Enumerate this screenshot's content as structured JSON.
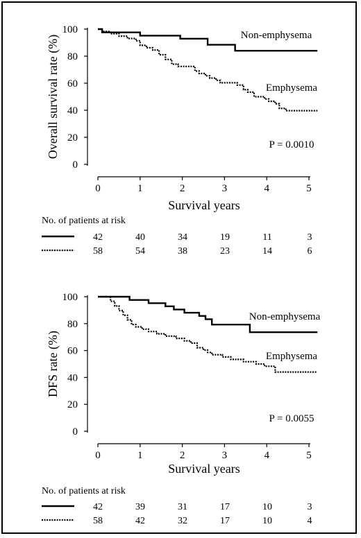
{
  "chart_data": [
    {
      "type": "line",
      "subtype": "kaplan-meier",
      "title": "",
      "xlabel": "Survival years",
      "ylabel": "Overall survival rate (%)",
      "xlim": [
        0,
        5.2
      ],
      "ylim": [
        0,
        100
      ],
      "x_ticks": [
        "0",
        "1",
        "2",
        "3",
        "4",
        "5"
      ],
      "y_ticks": [
        "0",
        "20",
        "40",
        "60",
        "80",
        "100"
      ],
      "pvalue_text": "P = 0.0010",
      "grid": false,
      "series": [
        {
          "name": "Non-emphysema",
          "style": "solid",
          "points": [
            [
              0,
              100
            ],
            [
              0.1,
              97.6
            ],
            [
              1.0,
              95.2
            ],
            [
              1.95,
              92.9
            ],
            [
              2.6,
              88.4
            ],
            [
              3.25,
              84.0
            ],
            [
              5.2,
              84.0
            ]
          ]
        },
        {
          "name": "Emphysema",
          "style": "dotted",
          "points": [
            [
              0,
              100
            ],
            [
              0.1,
              98.3
            ],
            [
              0.3,
              96.6
            ],
            [
              0.5,
              94.8
            ],
            [
              0.7,
              93.1
            ],
            [
              0.9,
              91.4
            ],
            [
              1.0,
              88.0
            ],
            [
              1.15,
              86.2
            ],
            [
              1.3,
              84.5
            ],
            [
              1.45,
              81.0
            ],
            [
              1.6,
              77.6
            ],
            [
              1.75,
              74.1
            ],
            [
              1.9,
              72.4
            ],
            [
              2.3,
              69.0
            ],
            [
              2.4,
              67.2
            ],
            [
              2.55,
              65.5
            ],
            [
              2.65,
              63.8
            ],
            [
              2.8,
              62.1
            ],
            [
              2.9,
              60.3
            ],
            [
              3.3,
              58.6
            ],
            [
              3.45,
              55.2
            ],
            [
              3.55,
              53.4
            ],
            [
              3.7,
              50.0
            ],
            [
              3.95,
              48.3
            ],
            [
              4.05,
              46.6
            ],
            [
              4.2,
              44.8
            ],
            [
              4.3,
              41.4
            ],
            [
              4.45,
              39.7
            ],
            [
              5.2,
              39.7
            ]
          ]
        }
      ],
      "risk_table": {
        "title": "No. of patients at risk",
        "rows": [
          {
            "style": "solid",
            "values": [
              "42",
              "40",
              "34",
              "19",
              "11",
              "3"
            ]
          },
          {
            "style": "dotted",
            "values": [
              "58",
              "54",
              "38",
              "23",
              "14",
              "6"
            ]
          }
        ]
      }
    },
    {
      "type": "line",
      "subtype": "kaplan-meier",
      "title": "",
      "xlabel": "Survival years",
      "ylabel": "DFS rate (%)",
      "xlim": [
        0,
        5.2
      ],
      "ylim": [
        0,
        100
      ],
      "x_ticks": [
        "0",
        "1",
        "2",
        "3",
        "4",
        "5"
      ],
      "y_ticks": [
        "0",
        "20",
        "40",
        "60",
        "80",
        "100"
      ],
      "pvalue_text": "P = 0.0055",
      "grid": false,
      "series": [
        {
          "name": "Non-emphysema",
          "style": "solid",
          "points": [
            [
              0,
              100
            ],
            [
              0.75,
              97.6
            ],
            [
              1.2,
              95.2
            ],
            [
              1.6,
              92.9
            ],
            [
              1.8,
              90.5
            ],
            [
              2.05,
              88.1
            ],
            [
              2.4,
              85.7
            ],
            [
              2.55,
              83.3
            ],
            [
              2.7,
              79.3
            ],
            [
              3.6,
              73.6
            ],
            [
              5.2,
              73.6
            ]
          ]
        },
        {
          "name": "Emphysema",
          "style": "dotted",
          "points": [
            [
              0,
              100
            ],
            [
              0.3,
              96.6
            ],
            [
              0.4,
              93.1
            ],
            [
              0.5,
              89.7
            ],
            [
              0.6,
              86.2
            ],
            [
              0.7,
              82.8
            ],
            [
              0.8,
              79.3
            ],
            [
              0.9,
              77.6
            ],
            [
              1.05,
              75.9
            ],
            [
              1.2,
              74.1
            ],
            [
              1.4,
              72.4
            ],
            [
              1.6,
              70.7
            ],
            [
              1.85,
              69.0
            ],
            [
              2.05,
              67.2
            ],
            [
              2.2,
              65.5
            ],
            [
              2.35,
              62.1
            ],
            [
              2.5,
              60.3
            ],
            [
              2.6,
              58.6
            ],
            [
              2.7,
              56.9
            ],
            [
              2.95,
              55.2
            ],
            [
              3.15,
              53.4
            ],
            [
              3.45,
              51.7
            ],
            [
              3.75,
              50.0
            ],
            [
              3.95,
              48.3
            ],
            [
              4.2,
              44.0
            ],
            [
              5.2,
              44.0
            ]
          ]
        }
      ],
      "risk_table": {
        "title": "No. of patients at risk",
        "rows": [
          {
            "style": "solid",
            "values": [
              "42",
              "39",
              "31",
              "17",
              "10",
              "3"
            ]
          },
          {
            "style": "dotted",
            "values": [
              "58",
              "42",
              "32",
              "17",
              "10",
              "4"
            ]
          }
        ]
      }
    }
  ]
}
